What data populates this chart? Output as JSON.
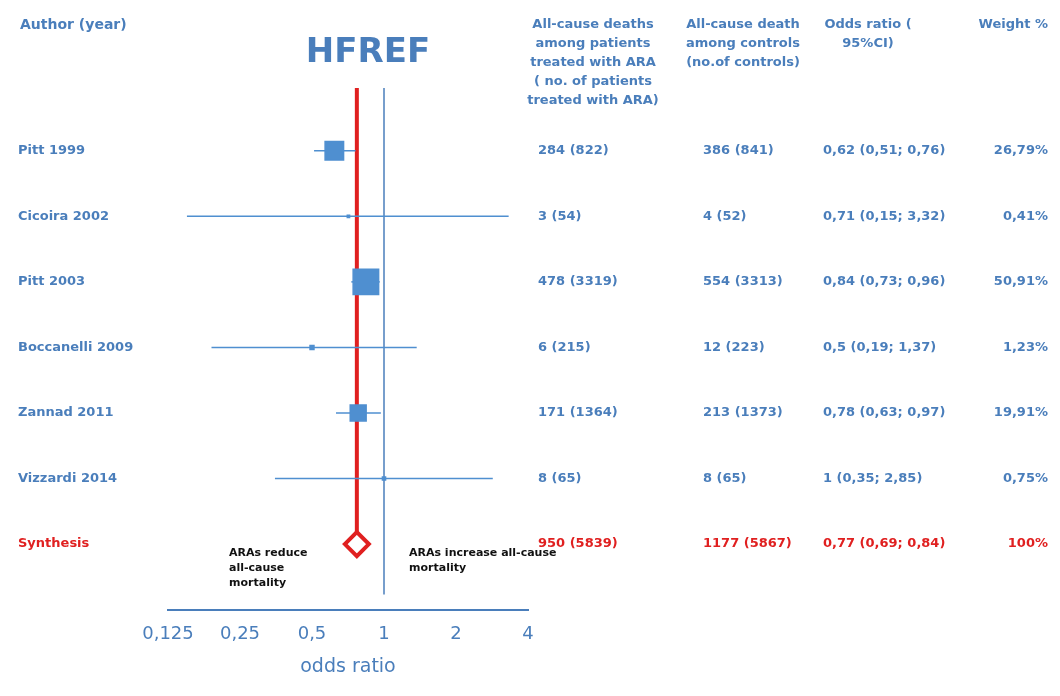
{
  "chart_data": {
    "type": "bubble",
    "title": "HFREF",
    "xlabel": "odds ratio",
    "ylabel": "Author (year)",
    "log": "x",
    "orientation": "horizontal",
    "xlim": [
      0.125,
      4
    ],
    "xticks": [
      {
        "value": 0.125,
        "label": "0,125"
      },
      {
        "value": 0.25,
        "label": "0,25"
      },
      {
        "value": 0.5,
        "label": "0,5"
      },
      1,
      2,
      4
    ],
    "categories": [
      "Pitt 1999",
      "Cicoira 2002",
      "Pitt 2003",
      "Boccanelli 2009",
      "Zannad 2011",
      "Vizzardi 2014",
      "Synthesis"
    ],
    "series": [
      {
        "color": "#4f8fd0",
        "marker": "square",
        "values": [
          0.62,
          0.71,
          0.84,
          0.5,
          0.78,
          1,
          null
        ],
        "sizes": [
          0.526,
          0.008,
          1,
          0.024,
          0.391,
          0.015,
          null
        ],
        "errors": [
          [
            0.51,
            0.76
          ],
          [
            0.15,
            3.32
          ],
          [
            0.73,
            0.96
          ],
          [
            0.19,
            1.37
          ],
          [
            0.63,
            0.97
          ],
          [
            0.35,
            2.85
          ],
          null
        ]
      },
      {
        "type": "scatter",
        "color": "#e02020",
        "marker": "diamond",
        "values": [
          null,
          null,
          null,
          null,
          null,
          null,
          0.77
        ]
      }
    ],
    "ref_lines": [
      {
        "axis": "x",
        "value": 1,
        "color": "#4a7ebb"
      },
      {
        "axis": "x",
        "value": 0.77,
        "color": "#e02020"
      }
    ],
    "annotations": [
      "ARAs reduce all-cause mortality",
      "ARAs increase all-cause mortality",
      "All-cause deaths among patients treated with ARA ( no. of patients treated with ARA)",
      "All-cause death among controls (no.of controls)",
      "Odds ratio ( 95%CI)",
      "Weight %",
      "284 (822)",
      "386 (841)",
      "0,62 (0,51; 0,76)",
      "26,79%",
      "3 (54)",
      "4 (52)",
      "0,71 (0,15; 3,32)",
      "0,41%",
      "478 (3319)",
      "554 (3313)",
      "0,84 (0,73; 0,96)",
      "50,91%",
      "6 (215)",
      "12 (223)",
      "0,5 (0,19; 1,37)",
      "1,23%",
      "171 (1364)",
      "213 (1373)",
      "0,78 (0,63; 0,97)",
      "19,91%",
      "8 (65)",
      "8 (65)",
      "1 (0,35; 2,85)",
      "0,75%",
      "950 (5839)",
      "1177 (5867)",
      "0,77 (0,69; 0,84)",
      "100%"
    ],
    "grid": false,
    "legend": false
  }
}
